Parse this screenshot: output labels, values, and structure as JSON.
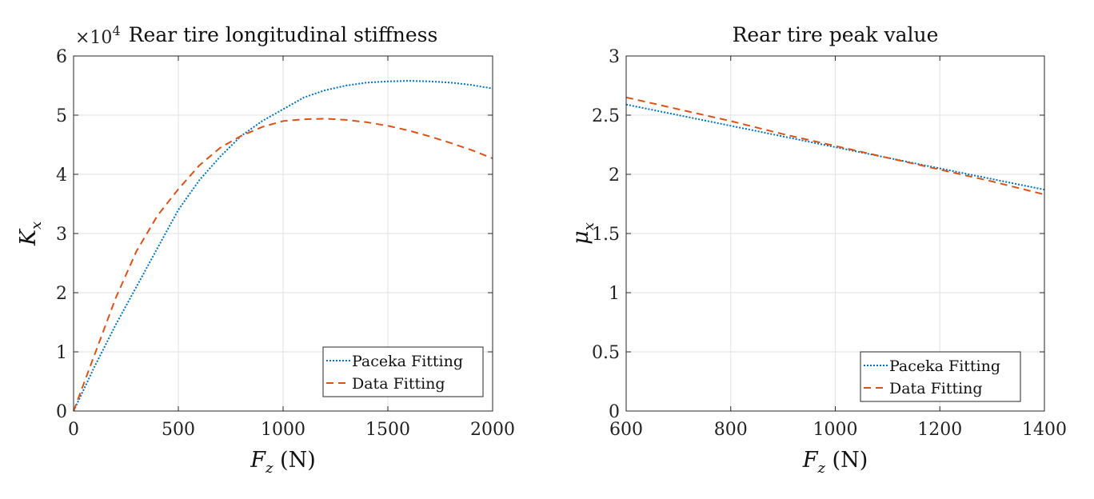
{
  "chart_data": [
    {
      "type": "line",
      "title": "Rear tire longitudinal stiffness",
      "xlabel": {
        "main": "F",
        "sub": "z",
        "unit": " (N)"
      },
      "ylabel": {
        "main": "K",
        "sub": "x"
      },
      "exponent_base": "×10",
      "exponent_power": "4",
      "xlim": [
        0,
        2000
      ],
      "ylim": [
        0,
        6
      ],
      "xticks": [
        "0",
        "500",
        "1000",
        "1500",
        "2000"
      ],
      "yticks": [
        "0",
        "1",
        "2",
        "3",
        "4",
        "5",
        "6"
      ],
      "grid": true,
      "legend": "bottom-right",
      "series": [
        {
          "name": "Paceka Fitting",
          "color": "#0072BD",
          "style": "dotted",
          "x": [
            0,
            100,
            200,
            300,
            400,
            500,
            600,
            700,
            800,
            900,
            1000,
            1100,
            1200,
            1300,
            1400,
            1500,
            1600,
            1700,
            1800,
            1900,
            2000
          ],
          "y": [
            0,
            0.75,
            1.45,
            2.1,
            2.75,
            3.4,
            3.9,
            4.3,
            4.65,
            4.9,
            5.1,
            5.3,
            5.42,
            5.5,
            5.55,
            5.57,
            5.58,
            5.57,
            5.55,
            5.51,
            5.45
          ]
        },
        {
          "name": "Data Fitting",
          "color": "#D95319",
          "style": "dashed",
          "x": [
            0,
            100,
            200,
            300,
            400,
            500,
            600,
            700,
            800,
            900,
            1000,
            1100,
            1200,
            1300,
            1400,
            1500,
            1600,
            1700,
            1800,
            1900,
            2000
          ],
          "y": [
            0,
            0.95,
            1.9,
            2.7,
            3.3,
            3.75,
            4.15,
            4.45,
            4.65,
            4.8,
            4.9,
            4.93,
            4.94,
            4.92,
            4.88,
            4.82,
            4.74,
            4.64,
            4.53,
            4.41,
            4.27
          ]
        }
      ]
    },
    {
      "type": "line",
      "title": "Rear tire peak value",
      "xlabel": {
        "main": "F",
        "sub": "z",
        "unit": " (N)"
      },
      "ylabel": {
        "main": "μ",
        "sub": "x"
      },
      "xlim": [
        600,
        1400
      ],
      "ylim": [
        0,
        3
      ],
      "xticks": [
        "600",
        "800",
        "1000",
        "1200",
        "1400"
      ],
      "yticks": [
        "0",
        "0.5",
        "1",
        "1.5",
        "2",
        "2.5",
        "3"
      ],
      "grid": true,
      "legend": "bottom-right",
      "series": [
        {
          "name": "Paceka Fitting",
          "color": "#0072BD",
          "style": "dotted",
          "x": [
            600,
            700,
            800,
            900,
            1000,
            1100,
            1200,
            1300,
            1400
          ],
          "y": [
            2.59,
            2.5,
            2.41,
            2.32,
            2.23,
            2.14,
            2.05,
            1.96,
            1.87
          ]
        },
        {
          "name": "Data Fitting",
          "color": "#D95319",
          "style": "dashed",
          "x": [
            600,
            700,
            800,
            900,
            1000,
            1100,
            1200,
            1300,
            1400
          ],
          "y": [
            2.65,
            2.55,
            2.45,
            2.34,
            2.24,
            2.14,
            2.04,
            1.94,
            1.83
          ]
        }
      ]
    }
  ]
}
